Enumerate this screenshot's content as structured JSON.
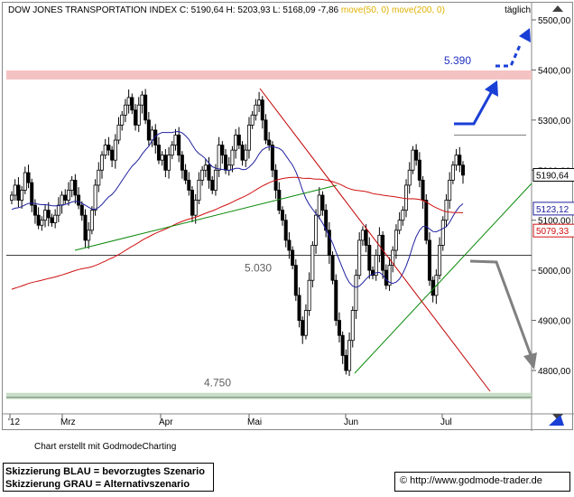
{
  "header": {
    "title": "DOW JONES TRANSPORTATION INDEX",
    "ohlc": "C: 5190,64 H: 5203,93 L: 5168,09 -7,86",
    "ma50": "move(50, 0)",
    "ma200": "move(200, 0)",
    "period": "täglich"
  },
  "footer": {
    "credit": "Chart erstellt mit GodmodeCharting",
    "legend_blue": "Skizzierung BLAU = bevorzugtes Szenario",
    "legend_grey": "Skizzierung GRAU = Alternativszenario",
    "url": "http://www.godmode-trader.de"
  },
  "chart_data": {
    "type": "candlestick",
    "y_axis": {
      "ticks": [
        "4800,00",
        "4900,00",
        "5000,00",
        "5100,00",
        "5200,00",
        "5300,00",
        "5400,00",
        "5500,00"
      ],
      "tick_values": [
        4800,
        4900,
        5000,
        5100,
        5200,
        5300,
        5400,
        5500
      ],
      "range": [
        4730,
        5520
      ]
    },
    "x_axis": {
      "ticks": [
        "'12",
        "Mrz",
        "Apr",
        "Mai",
        "Jun",
        "Jul"
      ]
    },
    "annotations": {
      "resistance_label": "5.390",
      "support_label": "5.030",
      "lower_label": "4.750",
      "resistance_level": 5390,
      "support_level": 5030,
      "lower_level": 4750,
      "high_level": 5270
    },
    "value_labels": {
      "close": "5190,64",
      "ma50": "5123,12",
      "ma200": "5079,33"
    },
    "colors": {
      "candle": "#000000",
      "ma50": "#2020a0",
      "ma200": "#d01010",
      "resistance_zone": "#f4c2c2",
      "support_zone": "#c8dcc8",
      "scenario_blue": "#1a3fd6",
      "scenario_grey": "#808080",
      "trend_green": "#0a8a0a",
      "trend_red": "#c00000"
    },
    "closes": [
      5150,
      5170,
      5140,
      5160,
      5195,
      5175,
      5130,
      5110,
      5090,
      5100,
      5120,
      5105,
      5095,
      5110,
      5130,
      5150,
      5140,
      5160,
      5180,
      5150,
      5130,
      5110,
      5060,
      5080,
      5120,
      5170,
      5200,
      5230,
      5250,
      5240,
      5220,
      5260,
      5290,
      5310,
      5330,
      5345,
      5320,
      5290,
      5330,
      5350,
      5300,
      5260,
      5280,
      5250,
      5220,
      5230,
      5200,
      5230,
      5250,
      5270,
      5230,
      5200,
      5180,
      5160,
      5110,
      5140,
      5180,
      5200,
      5210,
      5180,
      5160,
      5200,
      5250,
      5230,
      5200,
      5210,
      5240,
      5270,
      5250,
      5220,
      5240,
      5290,
      5310,
      5330,
      5340,
      5300,
      5260,
      5250,
      5200,
      5160,
      5120,
      5100,
      5060,
      5040,
      5010,
      4950,
      4900,
      4870,
      4920,
      4980,
      5050,
      5110,
      5150,
      5120,
      5080,
      5030,
      4980,
      4900,
      4870,
      4830,
      4800,
      4860,
      4920,
      4990,
      5060,
      5080,
      5050,
      5000,
      4990,
      5030,
      5070,
      5000,
      4970,
      5010,
      5040,
      5080,
      5100,
      5120,
      5170,
      5200,
      5240,
      5220,
      5180,
      5140,
      5060,
      4980,
      4950,
      4990,
      5050,
      5100,
      5140,
      5180,
      5210,
      5230,
      5210,
      5190
    ]
  }
}
